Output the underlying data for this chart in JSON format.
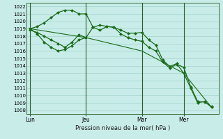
{
  "background_color": "#c8ece8",
  "plot_bg_color": "#c8ece8",
  "grid_color": "#a8d8d0",
  "line_color": "#1a6b1a",
  "marker_color": "#1a6b1a",
  "xlabel_text": "Pression niveau de la mer( hPa )",
  "xtick_labels": [
    "Lun",
    "Jeu",
    "Mar",
    "Mer"
  ],
  "xtick_positions": [
    0,
    8,
    16,
    22
  ],
  "ylim": [
    1007.5,
    1022.5
  ],
  "yticks": [
    1008,
    1009,
    1010,
    1011,
    1012,
    1013,
    1014,
    1015,
    1016,
    1017,
    1018,
    1019,
    1020,
    1021,
    1022
  ],
  "vline_positions": [
    0,
    8,
    16,
    22
  ],
  "xlim": [
    -0.5,
    27
  ],
  "series": [
    {
      "x": [
        0,
        1,
        2,
        3,
        4,
        5,
        6,
        7,
        8,
        9,
        10,
        11,
        12,
        13,
        14,
        15,
        16,
        17,
        18,
        19,
        20,
        21,
        22,
        23,
        24,
        25,
        26
      ],
      "y": [
        1019.0,
        1019.3,
        1019.8,
        1020.5,
        1021.2,
        1021.5,
        1021.5,
        1021.0,
        1021.0,
        1019.2,
        1018.8,
        1019.3,
        1019.2,
        1018.8,
        1018.4,
        1018.4,
        1018.5,
        1017.5,
        1016.8,
        1014.8,
        1013.9,
        1014.3,
        1013.0,
        1011.0,
        1009.0,
        1009.2,
        1008.4
      ],
      "marker": "D",
      "markersize": 2.0,
      "linewidth": 0.9
    },
    {
      "x": [
        0,
        1,
        2,
        3,
        4,
        5,
        6,
        7,
        8,
        9,
        10,
        11,
        12,
        13,
        14,
        15,
        16,
        17,
        18,
        19,
        20,
        21,
        22,
        23,
        24,
        25,
        26
      ],
      "y": [
        1018.8,
        1018.5,
        1018.0,
        1017.5,
        1017.0,
        1016.5,
        1017.2,
        1018.2,
        1017.8,
        1019.2,
        1019.5,
        1019.3,
        1019.2,
        1018.3,
        1017.8,
        1017.5,
        1017.3,
        1016.5,
        1016.0,
        1014.5,
        1013.7,
        1014.2,
        1013.8,
        1011.2,
        1009.2,
        1009.1,
        1008.5
      ],
      "marker": "D",
      "markersize": 2.0,
      "linewidth": 0.9
    },
    {
      "x": [
        0,
        8,
        16,
        22,
        26
      ],
      "y": [
        1019.0,
        1017.8,
        1016.0,
        1013.0,
        1008.4
      ],
      "marker": null,
      "markersize": 0,
      "linewidth": 0.8
    },
    {
      "x": [
        0,
        1,
        2,
        3,
        4,
        5,
        6,
        7,
        8
      ],
      "y": [
        1019.0,
        1018.3,
        1017.2,
        1016.5,
        1016.0,
        1016.2,
        1016.7,
        1017.5,
        1017.8
      ],
      "marker": "D",
      "markersize": 2.0,
      "linewidth": 0.9
    }
  ]
}
